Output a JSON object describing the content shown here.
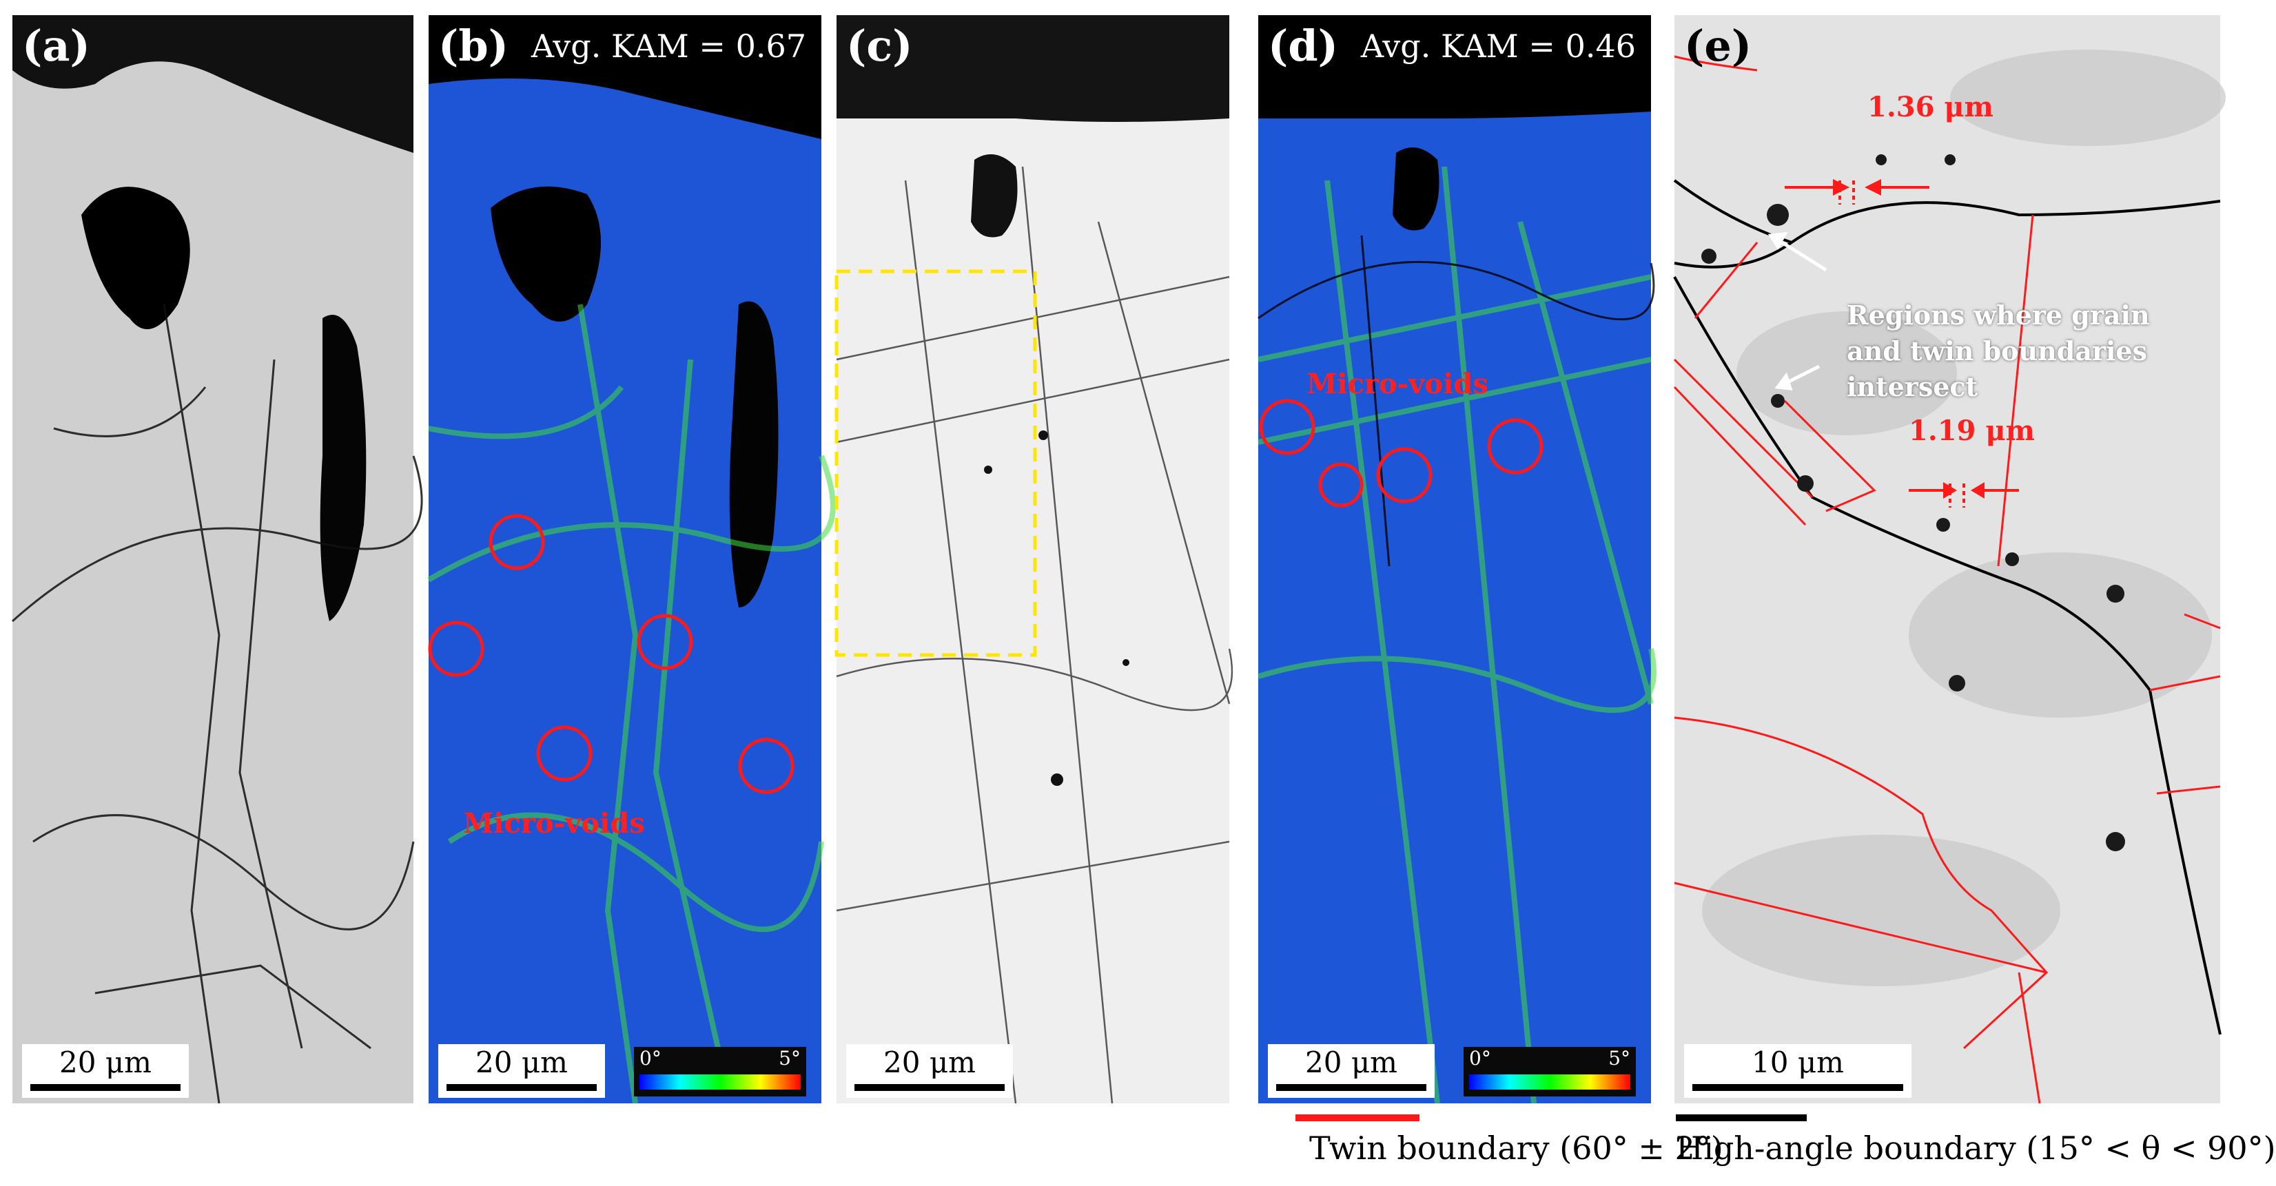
{
  "panels": {
    "a": {
      "label": "(a)",
      "scale": "20 μm"
    },
    "b": {
      "label": "(b)",
      "kam": "Avg. KAM = 0.67",
      "scale": "20 μm",
      "annotation": "Micro-voids",
      "colorbar": {
        "min": "0°",
        "max": "5°"
      }
    },
    "c": {
      "label": "(c)",
      "scale": "20 μm"
    },
    "d": {
      "label": "(d)",
      "kam": "Avg. KAM = 0.46",
      "scale": "20 μm",
      "annotation": "Micro-voids",
      "colorbar": {
        "min": "0°",
        "max": "5°"
      }
    },
    "e": {
      "label": "(e)",
      "scale": "10 μm",
      "measure1": "1.36 μm",
      "measure2": "1.19 μm",
      "note": "Regions where grain and twin boundaries intersect"
    }
  },
  "legend": {
    "twin": "Twin boundary (60° ± 2°)",
    "high_angle": "High-angle boundary (15° < θ < 90°)",
    "twin_color": "#ff1a1a",
    "high_angle_color": "#000000"
  }
}
